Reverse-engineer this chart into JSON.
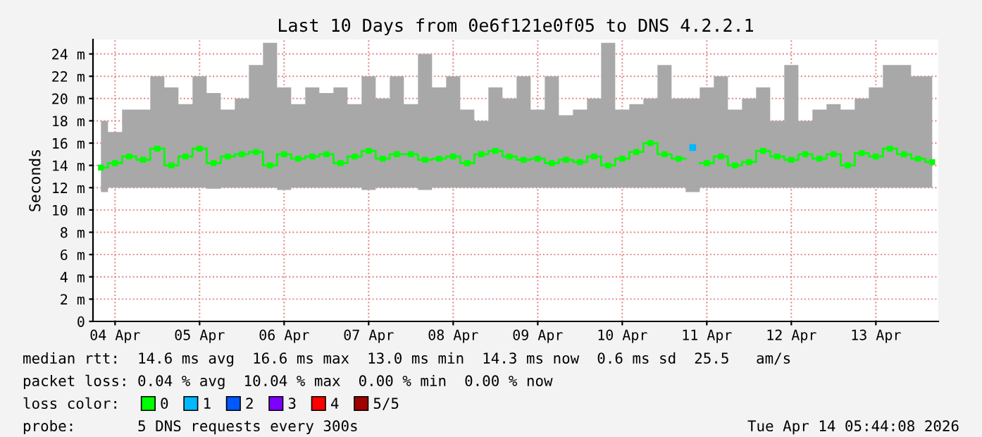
{
  "chart_data": {
    "type": "step",
    "title": "Last 10 Days from 0e6f121e0f05 to DNS 4.2.2.1",
    "ylabel": "Seconds",
    "x": [
      "2026-04-04T08:00",
      "2026-04-04T12:00",
      "2026-04-04T16:00",
      "2026-04-04T20:00",
      "2026-04-05T00:00",
      "2026-04-05T04:00",
      "2026-04-05T08:00",
      "2026-04-05T12:00",
      "2026-04-05T16:00",
      "2026-04-05T20:00",
      "2026-04-06T00:00",
      "2026-04-06T04:00",
      "2026-04-06T08:00",
      "2026-04-06T12:00",
      "2026-04-06T16:00",
      "2026-04-06T20:00",
      "2026-04-07T00:00",
      "2026-04-07T04:00",
      "2026-04-07T08:00",
      "2026-04-07T12:00",
      "2026-04-07T16:00",
      "2026-04-07T20:00",
      "2026-04-08T00:00",
      "2026-04-08T04:00",
      "2026-04-08T08:00",
      "2026-04-08T12:00",
      "2026-04-08T16:00",
      "2026-04-08T20:00",
      "2026-04-09T00:00",
      "2026-04-09T04:00",
      "2026-04-09T08:00",
      "2026-04-09T12:00",
      "2026-04-09T16:00",
      "2026-04-09T20:00",
      "2026-04-10T00:00",
      "2026-04-10T04:00",
      "2026-04-10T08:00",
      "2026-04-10T12:00",
      "2026-04-10T16:00",
      "2026-04-10T20:00",
      "2026-04-11T00:00",
      "2026-04-11T04:00",
      "2026-04-11T08:00",
      "2026-04-11T12:00",
      "2026-04-11T16:00",
      "2026-04-11T20:00",
      "2026-04-12T00:00",
      "2026-04-12T04:00",
      "2026-04-12T08:00",
      "2026-04-12T12:00",
      "2026-04-12T16:00",
      "2026-04-12T20:00",
      "2026-04-13T00:00",
      "2026-04-13T04:00",
      "2026-04-13T08:00",
      "2026-04-13T12:00",
      "2026-04-13T16:00",
      "2026-04-13T20:00",
      "2026-04-14T00:00",
      "2026-04-14T04:00"
    ],
    "series": [
      {
        "name": "0",
        "color": "#00ff00",
        "values": [
          13.8,
          14.2,
          14.8,
          14.5,
          15.5,
          14.0,
          14.8,
          15.5,
          14.2,
          14.8,
          15.0,
          15.2,
          14.0,
          15.0,
          14.6,
          14.8,
          15.0,
          14.2,
          14.8,
          15.3,
          14.6,
          15.0,
          15.0,
          14.5,
          14.6,
          14.8,
          14.2,
          15.0,
          15.3,
          14.8,
          14.5,
          14.6,
          14.2,
          14.5,
          14.3,
          14.8,
          14.0,
          14.6,
          15.2,
          16.0,
          15.0,
          14.6,
          null,
          14.2,
          14.8,
          14.0,
          14.3,
          15.3,
          14.8,
          14.5,
          15.0,
          14.6,
          15.0,
          14.0,
          15.1,
          14.8,
          15.5,
          15.0,
          14.6,
          14.3
        ],
        "lower": [
          11.6,
          12.0,
          12.0,
          12.0,
          12.0,
          12.0,
          12.0,
          12.0,
          11.9,
          12.0,
          12.0,
          12.0,
          12.0,
          11.8,
          12.0,
          12.0,
          12.0,
          12.0,
          12.0,
          11.8,
          12.0,
          12.0,
          12.0,
          11.8,
          12.0,
          12.0,
          12.0,
          12.0,
          12.0,
          12.0,
          12.0,
          12.0,
          12.0,
          12.0,
          12.0,
          12.0,
          12.0,
          12.0,
          12.0,
          12.0,
          12.0,
          12.0,
          11.6,
          12.0,
          12.0,
          12.0,
          12.0,
          12.0,
          12.0,
          12.0,
          12.0,
          12.0,
          12.0,
          12.0,
          12.0,
          12.0,
          12.0,
          12.0,
          12.0,
          12.0
        ],
        "upper": [
          18,
          17,
          19,
          19,
          22,
          21,
          19.5,
          22,
          20.5,
          19,
          20,
          23,
          25,
          21,
          19.5,
          21,
          20.5,
          21,
          19.5,
          22,
          20,
          22,
          19.5,
          24,
          21,
          22,
          19,
          18,
          21,
          20,
          22,
          19,
          22,
          18.5,
          19,
          20,
          25,
          19,
          19.5,
          20,
          23,
          20,
          20,
          21,
          22,
          19,
          20,
          21,
          18,
          23,
          18,
          19,
          19.5,
          19,
          20,
          21,
          23,
          23,
          22,
          22
        ]
      },
      {
        "name": "1",
        "color": "#00b8ff",
        "type": "scatter",
        "values": [
          null,
          null,
          null,
          null,
          null,
          null,
          null,
          null,
          null,
          null,
          null,
          null,
          null,
          null,
          null,
          null,
          null,
          null,
          null,
          null,
          null,
          null,
          null,
          null,
          null,
          null,
          null,
          null,
          null,
          null,
          null,
          null,
          null,
          null,
          null,
          null,
          null,
          null,
          null,
          null,
          null,
          null,
          15.6,
          null,
          null,
          null,
          null,
          null,
          null,
          null,
          null,
          null,
          null,
          null,
          null,
          null,
          null,
          null,
          null,
          null
        ]
      },
      {
        "name": "2",
        "color": "#0059ff",
        "values": [
          null,
          null,
          null,
          null,
          null,
          null,
          null,
          null,
          null,
          null,
          null,
          null,
          null,
          null,
          null,
          null,
          null,
          null,
          null,
          null,
          null,
          null,
          null,
          null,
          null,
          null,
          null,
          null,
          null,
          null,
          null,
          null,
          null,
          null,
          null,
          null,
          null,
          null,
          null,
          null,
          null,
          null,
          null,
          null,
          null,
          null,
          null,
          null,
          null,
          null,
          null,
          null,
          null,
          null,
          null,
          null,
          null,
          null,
          null,
          null
        ]
      },
      {
        "name": "3",
        "color": "#7e00ff",
        "values": [
          null,
          null,
          null,
          null,
          null,
          null,
          null,
          null,
          null,
          null,
          null,
          null,
          null,
          null,
          null,
          null,
          null,
          null,
          null,
          null,
          null,
          null,
          null,
          null,
          null,
          null,
          null,
          null,
          null,
          null,
          null,
          null,
          null,
          null,
          null,
          null,
          null,
          null,
          null,
          null,
          null,
          null,
          null,
          null,
          null,
          null,
          null,
          null,
          null,
          null,
          null,
          null,
          null,
          null,
          null,
          null,
          null,
          null,
          null,
          null
        ]
      },
      {
        "name": "4",
        "color": "#ff0000",
        "values": [
          null,
          null,
          null,
          null,
          null,
          null,
          null,
          null,
          null,
          null,
          null,
          null,
          null,
          null,
          null,
          null,
          null,
          null,
          null,
          null,
          null,
          null,
          null,
          null,
          null,
          null,
          null,
          null,
          null,
          null,
          null,
          null,
          null,
          null,
          null,
          null,
          null,
          null,
          null,
          null,
          null,
          null,
          null,
          null,
          null,
          null,
          null,
          null,
          null,
          null,
          null,
          null,
          null,
          null,
          null,
          null,
          null,
          null,
          null,
          null
        ]
      },
      {
        "name": "5/5",
        "color": "#a10000",
        "values": [
          null,
          null,
          null,
          null,
          null,
          null,
          null,
          null,
          null,
          null,
          null,
          null,
          null,
          null,
          null,
          null,
          null,
          null,
          null,
          null,
          null,
          null,
          null,
          null,
          null,
          null,
          null,
          null,
          null,
          null,
          null,
          null,
          null,
          null,
          null,
          null,
          null,
          null,
          null,
          null,
          null,
          null,
          null,
          null,
          null,
          null,
          null,
          null,
          null,
          null,
          null,
          null,
          null,
          null,
          null,
          null,
          null,
          null,
          null,
          null
        ]
      }
    ],
    "xlim": [
      "2026-04-04T05:44",
      "2026-04-14T05:44"
    ],
    "xticks": [
      {
        "value": "2026-04-04T12:00",
        "label": "04 Apr"
      },
      {
        "value": "2026-04-05T12:00",
        "label": "05 Apr"
      },
      {
        "value": "2026-04-06T12:00",
        "label": "06 Apr"
      },
      {
        "value": "2026-04-07T12:00",
        "label": "07 Apr"
      },
      {
        "value": "2026-04-08T12:00",
        "label": "08 Apr"
      },
      {
        "value": "2026-04-09T12:00",
        "label": "09 Apr"
      },
      {
        "value": "2026-04-10T12:00",
        "label": "10 Apr"
      },
      {
        "value": "2026-04-11T12:00",
        "label": "11 Apr"
      },
      {
        "value": "2026-04-12T12:00",
        "label": "12 Apr"
      },
      {
        "value": "2026-04-13T12:00",
        "label": "13 Apr"
      }
    ],
    "ylim": [
      0,
      25.3
    ],
    "yticks": [
      0,
      {
        "value": 2,
        "label": "2 m"
      },
      {
        "value": 4,
        "label": "4 m"
      },
      {
        "value": 6,
        "label": "6 m"
      },
      {
        "value": 8,
        "label": "8 m"
      },
      {
        "value": 10,
        "label": "10 m"
      },
      {
        "value": 12,
        "label": "12 m"
      },
      {
        "value": 14,
        "label": "14 m"
      },
      {
        "value": 16,
        "label": "16 m"
      },
      {
        "value": 18,
        "label": "18 m"
      },
      {
        "value": 20,
        "label": "20 m"
      },
      {
        "value": 22,
        "label": "22 m"
      },
      {
        "value": 24,
        "label": "24 m"
      }
    ],
    "grid": true,
    "legend": "bottom",
    "marker": "square",
    "line_style": "solid",
    "annotations": [
      "median rtt:  14.6 ms avg  16.6 ms max  13.0 ms min  14.3 ms now  0.6 ms sd  25.5   am/s",
      "packet loss: 0.04 % avg  10.04 % max  0.00 % min  0.00 % now",
      "loss color:",
      "probe:       5 DNS requests every 300s",
      "Tue Apr 14 05:44:08 2026"
    ]
  }
}
